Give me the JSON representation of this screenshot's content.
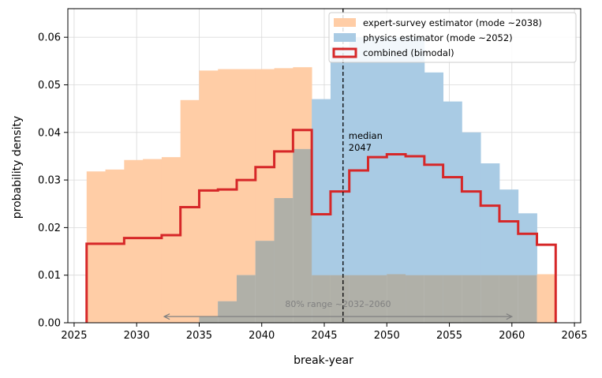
{
  "chart_data": {
    "type": "histogram",
    "xlabel": "break-year",
    "ylabel": "probability density",
    "xlim": [
      2024.5,
      2065.5
    ],
    "ylim": [
      0,
      0.066
    ],
    "x_ticks": [
      2025,
      2030,
      2035,
      2040,
      2045,
      2050,
      2055,
      2060,
      2065
    ],
    "y_ticks": [
      0.0,
      0.01,
      0.02,
      0.03,
      0.04,
      0.05,
      0.06
    ],
    "x_tick_labels": [
      "2025",
      "2030",
      "2035",
      "2040",
      "2045",
      "2050",
      "2055",
      "2060",
      "2065"
    ],
    "y_tick_labels": [
      "0.00",
      "0.01",
      "0.02",
      "0.03",
      "0.04",
      "0.05",
      "0.06"
    ],
    "grid": true,
    "legend_position": "top-right",
    "bin_edges": [
      2026.0,
      2027.5,
      2029.0,
      2030.5,
      2032.0,
      2033.5,
      2035.0,
      2036.5,
      2038.0,
      2039.5,
      2041.0,
      2042.5,
      2044.0,
      2045.5,
      2047.0,
      2048.5,
      2050.0,
      2051.5,
      2053.0,
      2054.5,
      2056.0,
      2057.5,
      2059.0,
      2060.5,
      2062.0,
      2063.5
    ],
    "series": [
      {
        "name": "expert-survey estimator (mode ~2038)",
        "style": "filled-step",
        "color": "#ffcda6",
        "values": [
          0.0318,
          0.0322,
          0.0342,
          0.0344,
          0.0348,
          0.0468,
          0.053,
          0.0533,
          0.0533,
          0.0533,
          0.0535,
          0.0537,
          0.01,
          0.01,
          0.01,
          0.01,
          0.0102,
          0.01,
          0.01,
          0.01,
          0.01,
          0.01,
          0.01,
          0.01,
          0.0102
        ]
      },
      {
        "name": "physics estimator (mode ~2052)",
        "style": "filled-step",
        "color": "#a9cbe4",
        "values": [
          0,
          0,
          0,
          0,
          0,
          0,
          0.0012,
          0.0045,
          0.01,
          0.0172,
          0.0262,
          0.0365,
          0.047,
          0.058,
          0.06,
          0.06,
          0.06,
          0.06,
          0.0526,
          0.0465,
          0.04,
          0.0335,
          0.028,
          0.023,
          0
        ]
      },
      {
        "name": "combined (bimodal)",
        "style": "step-outline",
        "color": "#d62728",
        "values": [
          0.0166,
          0.0166,
          0.0178,
          0.0178,
          0.0184,
          0.0243,
          0.0278,
          0.028,
          0.03,
          0.0327,
          0.036,
          0.0405,
          0.0228,
          0.0276,
          0.032,
          0.0348,
          0.0354,
          0.035,
          0.0332,
          0.0306,
          0.0276,
          0.0246,
          0.0213,
          0.0187,
          0.0164
        ]
      }
    ],
    "overlap_color": "#b0b0a8",
    "median": {
      "x": 2046.5,
      "label_line1": "median",
      "label_line2": "2047"
    },
    "range_annotation": {
      "x_start": 2032.2,
      "x_end": 2060.0,
      "y": 0.0013,
      "label": "80% range ~2032–2060"
    }
  }
}
